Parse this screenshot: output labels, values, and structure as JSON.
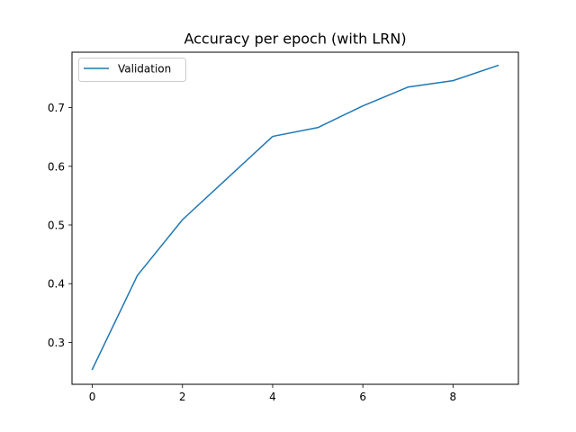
{
  "chart_data": {
    "type": "line",
    "title": "Accuracy per epoch (with LRN)",
    "xlabel": "",
    "ylabel": "",
    "xlim": [
      -0.45,
      9.45
    ],
    "ylim": [
      0.2285,
      0.7945
    ],
    "x_ticks": [
      0,
      2,
      4,
      6,
      8
    ],
    "x_tick_labels": [
      "0",
      "2",
      "4",
      "6",
      "8"
    ],
    "y_ticks": [
      0.3,
      0.4,
      0.5,
      0.6,
      0.7
    ],
    "y_tick_labels": [
      "0.3",
      "0.4",
      "0.5",
      "0.6",
      "0.7"
    ],
    "grid": false,
    "legend_position": "upper left",
    "series": [
      {
        "name": "Validation",
        "color": "#1f77b4",
        "x": [
          0,
          1,
          2,
          3,
          4,
          5,
          6,
          7,
          8,
          9
        ],
        "values": [
          0.254,
          0.414,
          0.509,
          0.58,
          0.651,
          0.666,
          0.703,
          0.735,
          0.746,
          0.772
        ]
      }
    ]
  }
}
